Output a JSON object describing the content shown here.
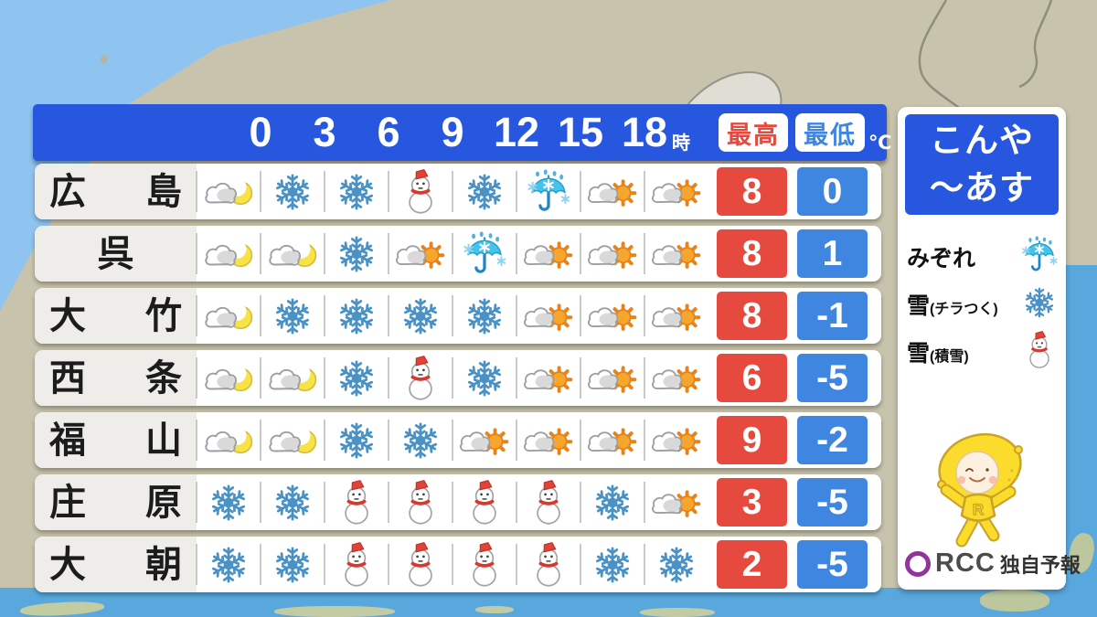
{
  "header": {
    "hours": [
      "0",
      "3",
      "6",
      "9",
      "12",
      "15",
      "18"
    ],
    "hour_unit": "時",
    "max_label": "最高",
    "min_label": "最低",
    "unit": "℃"
  },
  "table": {
    "rows": [
      {
        "city": "広島",
        "icons": [
          "moon-cloud",
          "snow",
          "snow",
          "snowman",
          "snow",
          "sleet",
          "cloud-sun",
          "cloud-sun"
        ],
        "max": "8",
        "min": "0"
      },
      {
        "city": "呉",
        "icons": [
          "moon-cloud",
          "moon-cloud",
          "snow",
          "cloud-sun",
          "sleet",
          "cloud-sun",
          "cloud-sun",
          "cloud-sun"
        ],
        "max": "8",
        "min": "1"
      },
      {
        "city": "大竹",
        "icons": [
          "moon-cloud",
          "snow",
          "snow",
          "snow",
          "snow",
          "cloud-sun",
          "cloud-sun",
          "cloud-sun"
        ],
        "max": "8",
        "min": "-1"
      },
      {
        "city": "西条",
        "icons": [
          "moon-cloud",
          "moon-cloud",
          "snow",
          "snowman",
          "snow",
          "cloud-sun",
          "cloud-sun",
          "cloud-sun"
        ],
        "max": "6",
        "min": "-5"
      },
      {
        "city": "福山",
        "icons": [
          "moon-cloud",
          "moon-cloud",
          "snow",
          "snow",
          "cloud-sun",
          "cloud-sun",
          "cloud-sun",
          "cloud-sun"
        ],
        "max": "9",
        "min": "-2"
      },
      {
        "city": "庄原",
        "icons": [
          "snow",
          "snow",
          "snowman",
          "snowman",
          "snowman",
          "snowman",
          "snow",
          "cloud-sun"
        ],
        "max": "3",
        "min": "-5"
      },
      {
        "city": "大朝",
        "icons": [
          "snow",
          "snow",
          "snowman",
          "snowman",
          "snowman",
          "snowman",
          "snow",
          "snow"
        ],
        "max": "2",
        "min": "-5"
      }
    ]
  },
  "panel": {
    "title_line1": "こんや",
    "title_line2": "～あす",
    "legend": [
      {
        "label": "みぞれ",
        "sub": "",
        "icon": "sleet"
      },
      {
        "label": "雪",
        "sub": "(チラつく)",
        "icon": "snow"
      },
      {
        "label": "雪",
        "sub": "(積雪)",
        "icon": "snowman"
      }
    ],
    "mascot_letter": "R",
    "logo_text": "RCC",
    "logo_suffix": "独自予報"
  },
  "colors": {
    "accent_blue": "#2857df",
    "badge_red": "#e6493d",
    "badge_blue": "#3f86e0",
    "sea_light": "#8ec4ef",
    "sea_deep": "#58a8dd",
    "land": "#c8c3ac",
    "snowflake_blue": "#4a92c5"
  },
  "chart_data": {
    "type": "table",
    "title": "こんや～あす",
    "hour_labels": [
      "0時",
      "3時",
      "6時",
      "9時",
      "12時",
      "15時",
      "18時"
    ],
    "temp_columns": [
      "最高",
      "最低"
    ],
    "unit": "℃",
    "legend_meaning": {
      "sleet": "みぞれ",
      "snow": "雪(チラつく)",
      "snowman": "雪(積雪)"
    },
    "rows": [
      {
        "city": "広島",
        "weather": [
          "moon-cloud",
          "snow",
          "snow",
          "snowman",
          "snow",
          "sleet",
          "cloud-sun",
          "cloud-sun"
        ],
        "max_c": 8,
        "min_c": 0
      },
      {
        "city": "呉",
        "weather": [
          "moon-cloud",
          "moon-cloud",
          "snow",
          "cloud-sun",
          "sleet",
          "cloud-sun",
          "cloud-sun",
          "cloud-sun"
        ],
        "max_c": 8,
        "min_c": 1
      },
      {
        "city": "大竹",
        "weather": [
          "moon-cloud",
          "snow",
          "snow",
          "snow",
          "snow",
          "cloud-sun",
          "cloud-sun",
          "cloud-sun"
        ],
        "max_c": 8,
        "min_c": -1
      },
      {
        "city": "西条",
        "weather": [
          "moon-cloud",
          "moon-cloud",
          "snow",
          "snowman",
          "snow",
          "cloud-sun",
          "cloud-sun",
          "cloud-sun"
        ],
        "max_c": 6,
        "min_c": -5
      },
      {
        "city": "福山",
        "weather": [
          "moon-cloud",
          "moon-cloud",
          "snow",
          "snow",
          "cloud-sun",
          "cloud-sun",
          "cloud-sun",
          "cloud-sun"
        ],
        "max_c": 9,
        "min_c": -2
      },
      {
        "city": "庄原",
        "weather": [
          "snow",
          "snow",
          "snowman",
          "snowman",
          "snowman",
          "snowman",
          "snow",
          "cloud-sun"
        ],
        "max_c": 3,
        "min_c": -5
      },
      {
        "city": "大朝",
        "weather": [
          "snow",
          "snow",
          "snowman",
          "snowman",
          "snowman",
          "snowman",
          "snow",
          "snow"
        ],
        "max_c": 2,
        "min_c": -5
      }
    ],
    "source": "RCC 独自予報"
  }
}
